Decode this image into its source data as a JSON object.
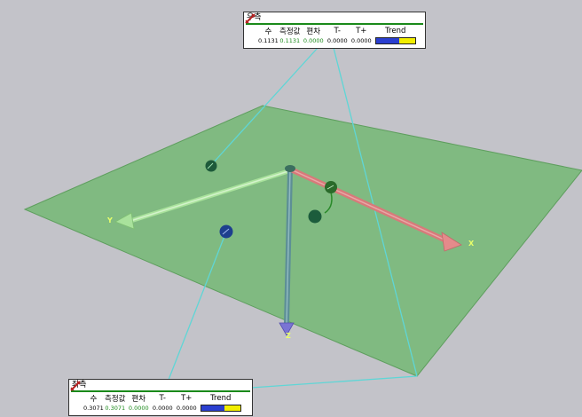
{
  "scene": {
    "axis_labels": {
      "x": "X",
      "y": "Y",
      "z": "Z"
    },
    "colors": {
      "background": "#c3c3c9",
      "plane": "#74b874",
      "connector": "#5fd6d6",
      "x_axis": "#d77a7a",
      "y_axis": "#9bd88f",
      "z_axis": "#5d8f96"
    }
  },
  "panels": {
    "right": {
      "title": "우측",
      "icon": "caliper-icon",
      "headers": [
        "수",
        "측정값",
        "편차",
        "T-",
        "T+",
        "Trend"
      ],
      "values": [
        "0.1131",
        "0.1131",
        "0.0000",
        "0.0000",
        "0.0000"
      ],
      "trend_blue_fraction": 0.6
    },
    "left": {
      "title": "좌측",
      "icon": "caliper-icon",
      "headers": [
        "수",
        "측정값",
        "편차",
        "T-",
        "T+",
        "Trend"
      ],
      "values": [
        "0.3071",
        "0.3071",
        "0.0000",
        "0.0000",
        "0.0000"
      ],
      "trend_blue_fraction": 0.6
    }
  }
}
